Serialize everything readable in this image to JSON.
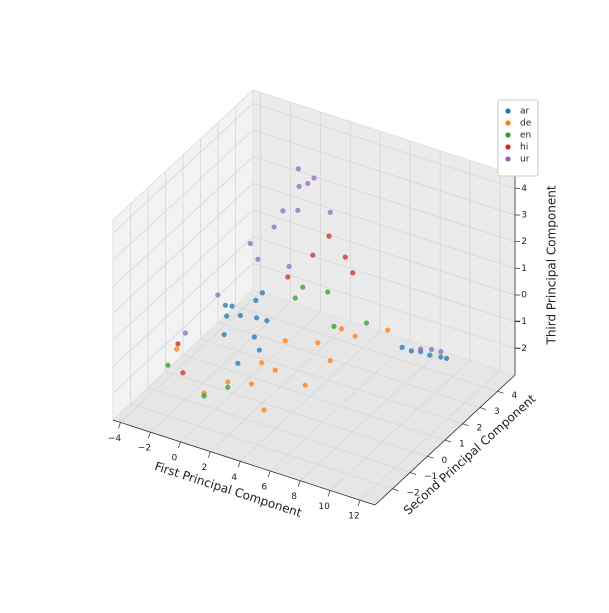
{
  "chart_data": {
    "type": "scatter3d",
    "xlabel": "First Principal Component",
    "ylabel": "Second Principal Component",
    "zlabel": "Third Principal Component",
    "xlim": [
      -4.5,
      13
    ],
    "ylim": [
      -3,
      5
    ],
    "zlim": [
      -3,
      4.5
    ],
    "xticks": [
      {
        "value": -4,
        "label": "−4"
      },
      {
        "value": -2,
        "label": "−2"
      },
      0,
      2,
      4,
      6,
      8,
      10,
      12
    ],
    "yticks": [
      {
        "value": -2,
        "label": "−2"
      },
      {
        "value": -1,
        "label": "−1"
      },
      0,
      1,
      2,
      3,
      4
    ],
    "zticks": [
      {
        "value": -2,
        "label": "−2"
      },
      {
        "value": -1,
        "label": "−1"
      },
      0,
      1,
      2,
      3,
      4
    ],
    "grid": true,
    "legend": "upper right",
    "series": [
      {
        "name": "ar",
        "color": "#1f77b4",
        "x": [
          0,
          0.5,
          1,
          1.5,
          -0.5,
          0.8,
          1.2,
          0.3,
          1.8,
          -1,
          2,
          0.6,
          9,
          10,
          11,
          9.5,
          10.5,
          8.5
        ],
        "y": [
          -0.5,
          0,
          0.5,
          -1,
          0,
          1,
          0.2,
          -0.3,
          0.4,
          0.5,
          -0.2,
          0.8,
          2.5,
          2.7,
          2.8,
          2.6,
          2.9,
          2.4
        ],
        "z": [
          -0.5,
          0,
          -0.3,
          -1,
          0.2,
          0.3,
          -0.8,
          0.5,
          -0.2,
          -0.6,
          -0.9,
          0.1,
          -1.3,
          -1.4,
          -1.4,
          -1.3,
          -1.5,
          -1.2
        ]
      },
      {
        "name": "de",
        "color": "#ff7f0e",
        "x": [
          2,
          3,
          4,
          5,
          6,
          3.5,
          4.5,
          1,
          7,
          8,
          6.5,
          2.5,
          5.5,
          -2
        ],
        "y": [
          -2,
          -1.5,
          -1,
          -2.5,
          -1,
          0,
          1,
          -2.5,
          1,
          2,
          0,
          -0.5,
          1.5,
          -1.5
        ],
        "z": [
          -1,
          -1.2,
          -0.8,
          -1.2,
          -1,
          -0.4,
          -0.9,
          -1.3,
          -0.2,
          -0.4,
          -0.6,
          -1.1,
          -0.5,
          -0.8
        ]
      },
      {
        "name": "en",
        "color": "#2ca02c",
        "x": [
          3,
          4,
          2,
          5,
          -2,
          1,
          3.5,
          6
        ],
        "y": [
          1,
          2,
          -2,
          1.5,
          -2,
          -2.5,
          1,
          2.5
        ],
        "z": [
          0.5,
          0.3,
          -1.2,
          -0.5,
          -1.1,
          -1.4,
          1,
          -0.8
        ]
      },
      {
        "name": "hi",
        "color": "#d62728",
        "x": [
          3,
          4,
          3.5,
          -2.5,
          -1,
          2.5,
          4.5
        ],
        "y": [
          2,
          3,
          2.5,
          -1,
          -2,
          1,
          3
        ],
        "z": [
          1.5,
          1,
          2,
          -1,
          -1.2,
          1.2,
          0.5
        ]
      },
      {
        "name": "ur",
        "color": "#9467bd",
        "x": [
          0,
          1,
          2,
          1.5,
          2.5,
          -1,
          0.5,
          3,
          2,
          1,
          -2,
          9.5,
          10,
          10.5,
          1.8,
          2.2
        ],
        "y": [
          1,
          1.5,
          2,
          2.5,
          2.5,
          0,
          1,
          3,
          1.5,
          2,
          -1,
          2.6,
          2.8,
          2.9,
          2.2,
          2.4
        ],
        "z": [
          2,
          2.5,
          3,
          3.5,
          4,
          0.5,
          1.5,
          2.5,
          1.2,
          2.8,
          -0.5,
          -1.2,
          -1.25,
          -1.3,
          4.4,
          3.8
        ]
      }
    ]
  }
}
